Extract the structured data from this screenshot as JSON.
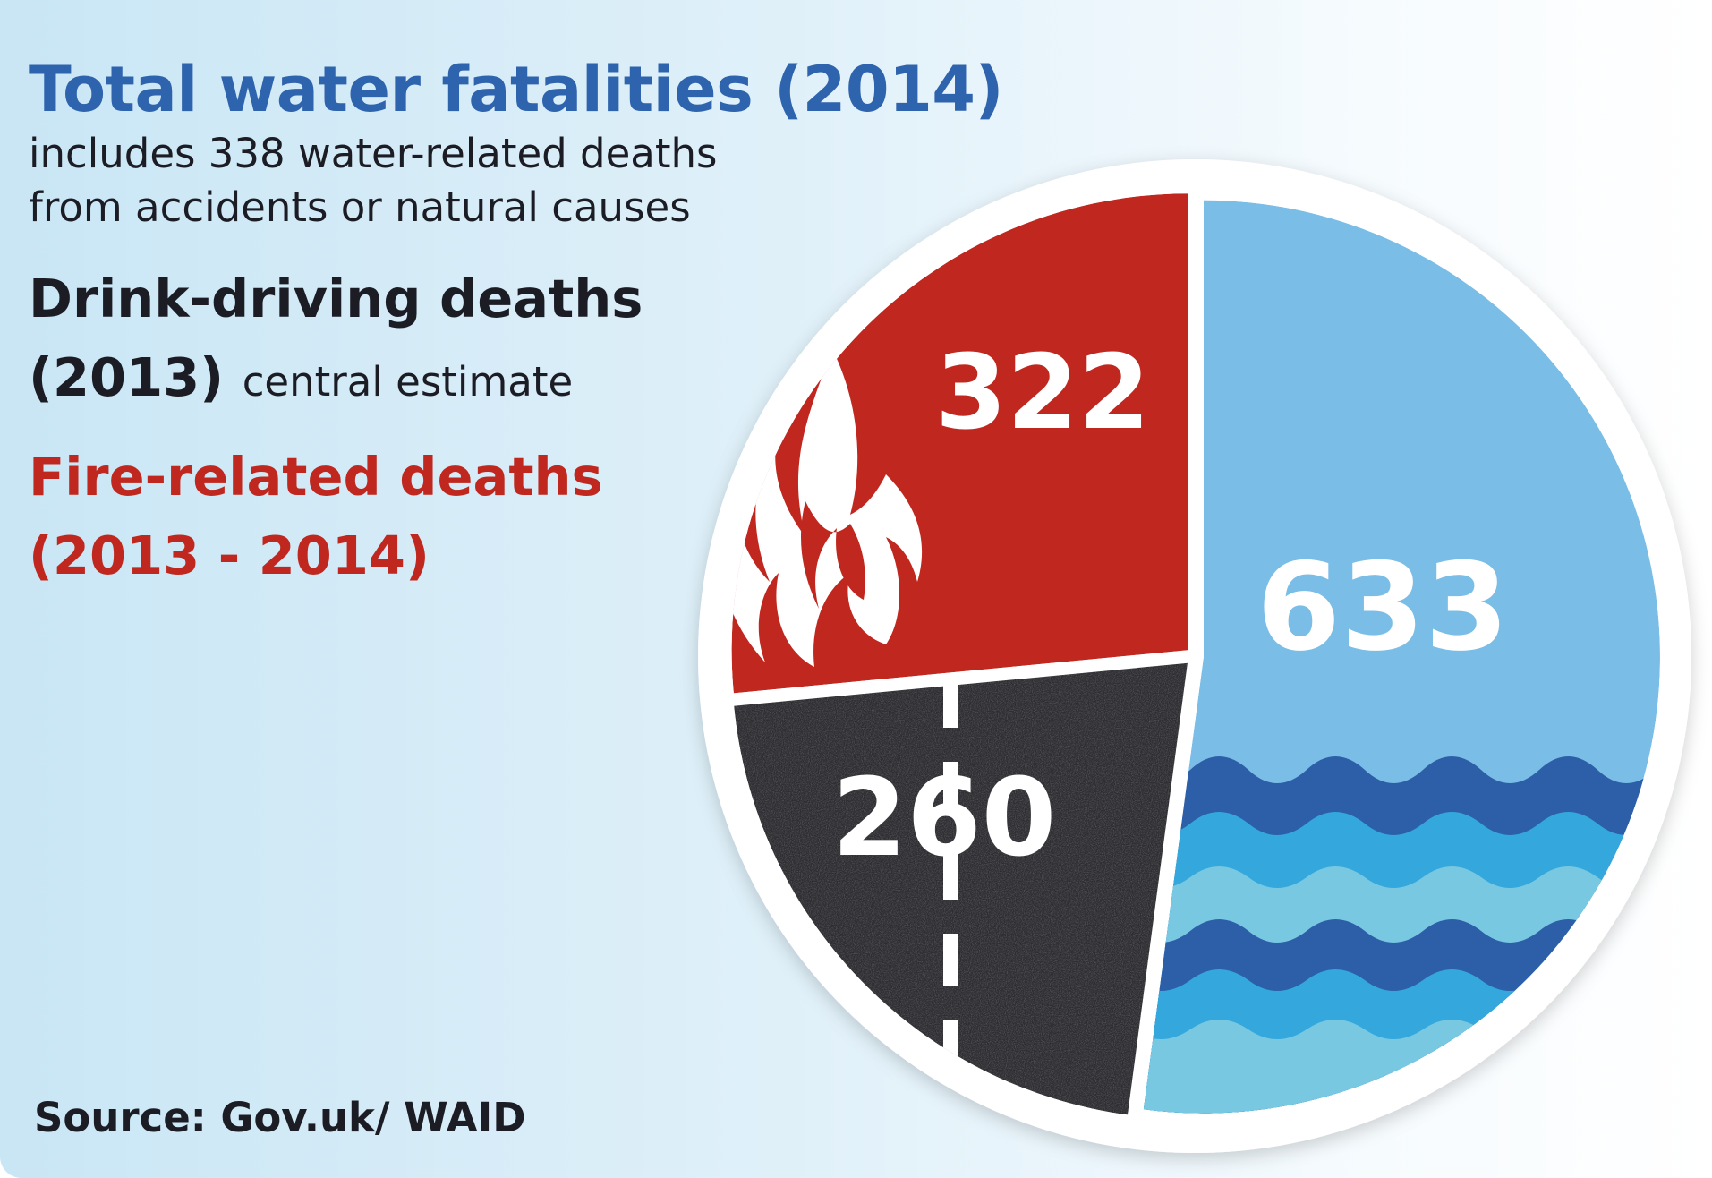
{
  "colors": {
    "water": "#7abde6",
    "wave_dark": "#2c5fa8",
    "wave_mid": "#34a8dc",
    "wave_light": "#78c8e2",
    "drink": "#2d2d31",
    "fire": "#c0281f",
    "text_dark": "#1c1c24"
  },
  "icons": {
    "water": "waves-icon",
    "drink": "road-icon",
    "fire": "flame-icon"
  },
  "legend": {
    "water_title": "Total water fatalities (2014)",
    "water_note_line1": "includes 338 water-related deaths",
    "water_note_line2": "from accidents or natural causes",
    "drink_title_line1": "Drink-driving deaths",
    "drink_title_line2": "(2013)",
    "drink_note": "central estimate",
    "fire_title_line1": "Fire-related deaths",
    "fire_title_line2": "(2013 - 2014)"
  },
  "source": "Source: Gov.uk/ WAID",
  "chart_data": {
    "type": "pie",
    "slices": [
      {
        "key": "water",
        "value": 633,
        "label": "633"
      },
      {
        "key": "drink",
        "value": 260,
        "label": "260"
      },
      {
        "key": "fire",
        "value": 322,
        "label": "322"
      }
    ]
  }
}
